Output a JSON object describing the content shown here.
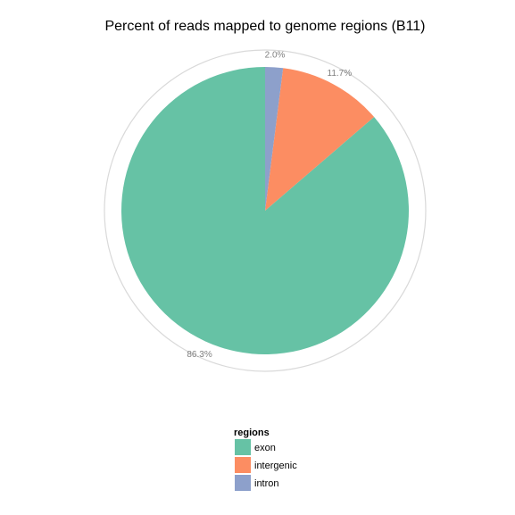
{
  "chart_data": {
    "type": "pie",
    "title": "Percent of reads mapped to genome regions (B11)",
    "legend_title": "regions",
    "legend_position": "bottom",
    "slices": [
      {
        "label": "exon",
        "value": 86.3,
        "display": "86.3%",
        "color": "#66c2a5"
      },
      {
        "label": "intergenic",
        "value": 11.7,
        "display": "11.7%",
        "color": "#fc8d62"
      },
      {
        "label": "intron",
        "value": 2.0,
        "display": "2.0%",
        "color": "#8da0cb"
      }
    ]
  }
}
